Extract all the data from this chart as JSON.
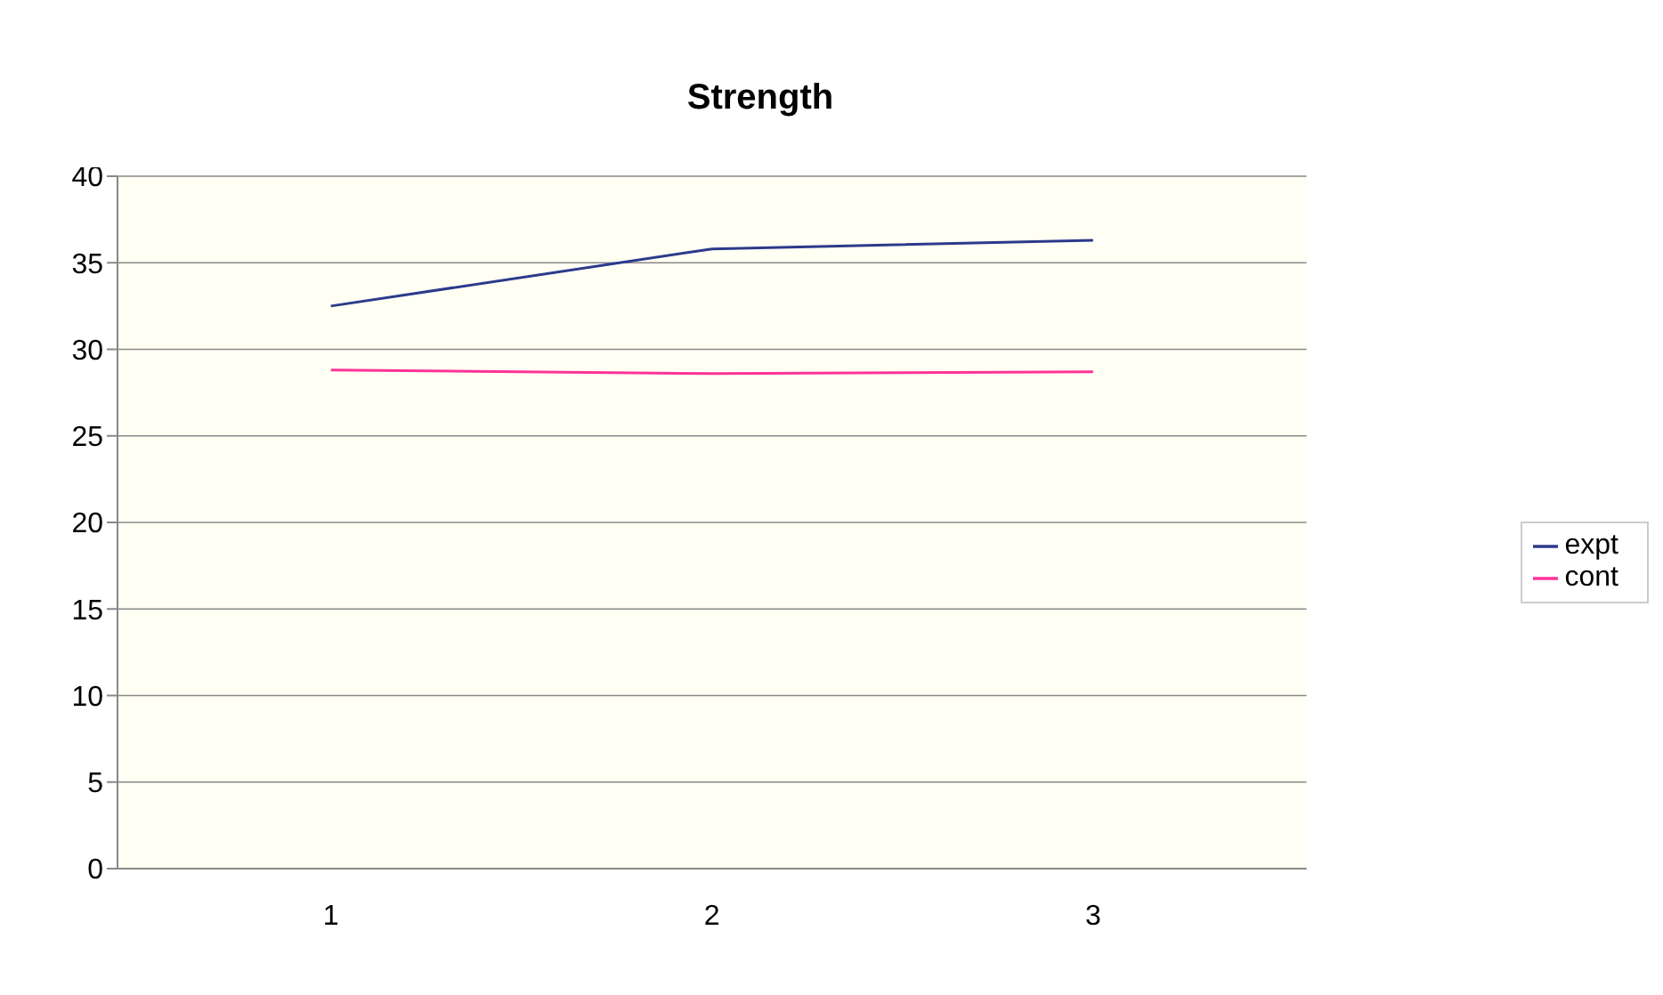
{
  "chart_data": {
    "type": "line",
    "title": "Strength",
    "categories": [
      "1",
      "2",
      "3"
    ],
    "series": [
      {
        "name": "expt",
        "color": "#2b3a8c",
        "values": [
          32.5,
          35.8,
          36.3
        ]
      },
      {
        "name": "cont",
        "color": "#ff3399",
        "values": [
          28.8,
          28.6,
          28.7
        ]
      }
    ],
    "ylim": [
      0,
      40
    ],
    "yticks": [
      0,
      5,
      10,
      15,
      20,
      25,
      30,
      35,
      40
    ],
    "grid": "y",
    "legend": "right",
    "marker": "none",
    "line_style": "solid"
  }
}
